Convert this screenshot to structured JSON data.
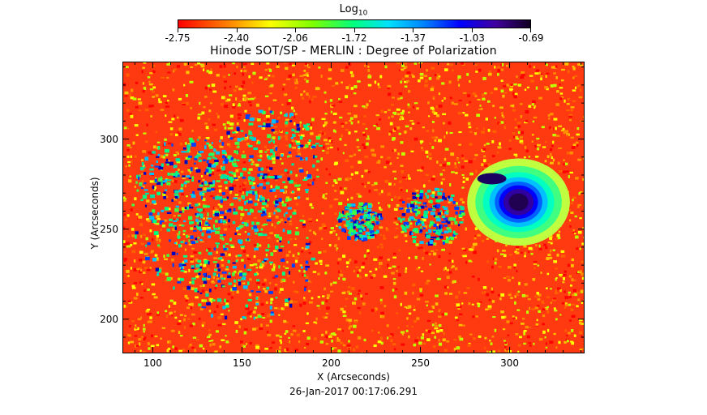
{
  "colorbar": {
    "label_base": "Log",
    "label_sub": "10",
    "tick_labels": [
      "-2.75",
      "-2.40",
      "-2.06",
      "-1.72",
      "-1.37",
      "-1.03",
      "-0.69"
    ],
    "min": -2.75,
    "max": -0.69
  },
  "title": "Hinode SOT/SP - MERLIN : Degree of Polarization",
  "x_axis": {
    "label": "X (Arcseconds)",
    "range": [
      83,
      342
    ],
    "ticks": [
      "100",
      "150",
      "200",
      "250",
      "300"
    ]
  },
  "y_axis": {
    "label": "Y (Arcseconds)",
    "range": [
      181,
      343
    ],
    "ticks": [
      "200",
      "250",
      "300"
    ]
  },
  "timestamp": "26-Jan-2017 00:17:06.291",
  "colors": {
    "background": "#ff3a10",
    "low": "#ff0000",
    "mid": "#00ff80",
    "high": "#100020"
  }
}
